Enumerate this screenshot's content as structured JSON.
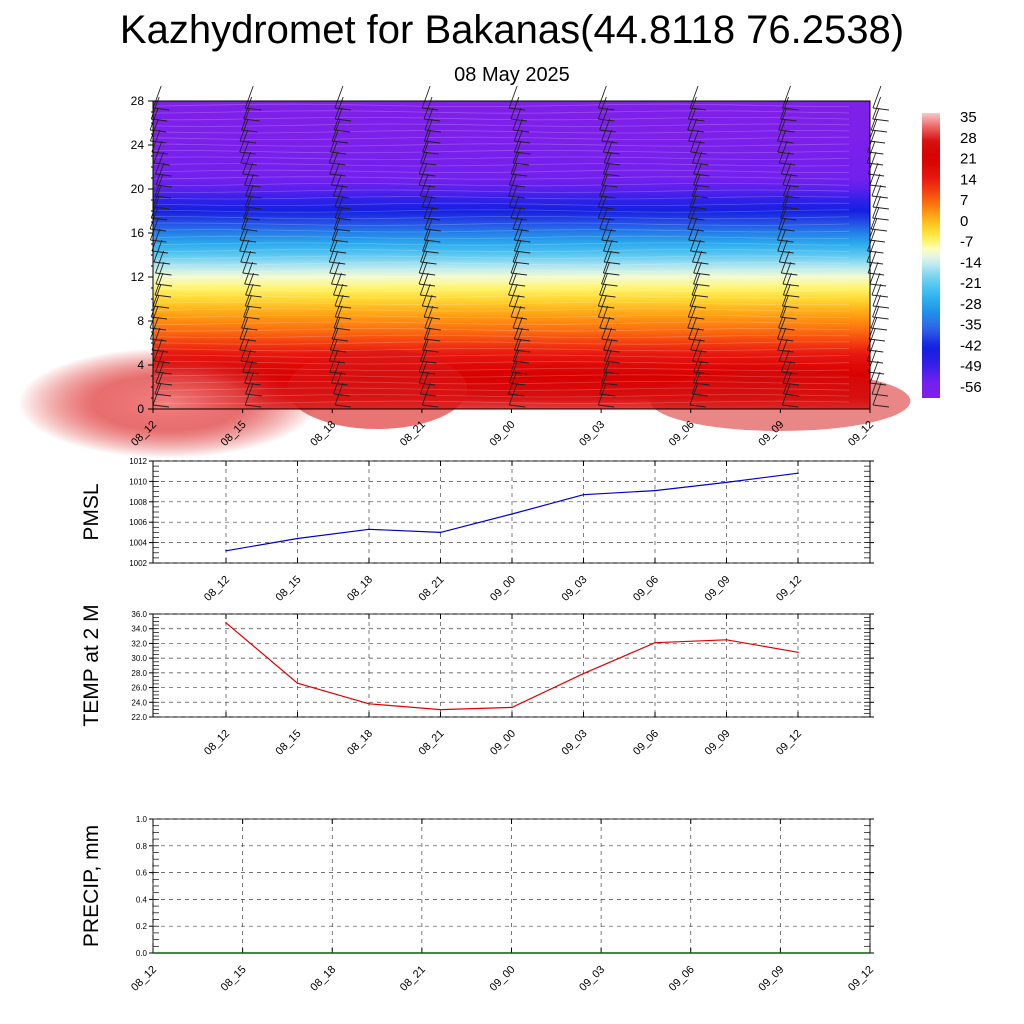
{
  "header": {
    "title": "Kazhydromet for Bakanas(44.8118 76.2538)",
    "date": "08 May 2025"
  },
  "chart_data": [
    {
      "type": "heatmap",
      "x_ticks": [
        "08_12",
        "08_15",
        "08_18",
        "08_21",
        "09_00",
        "09_03",
        "09_06",
        "09_09",
        "09_12"
      ],
      "y_ticks": [
        0,
        4,
        8,
        12,
        16,
        20,
        24,
        28
      ],
      "ylim": [
        0,
        28
      ],
      "colorbar_labels": [
        35,
        28,
        21,
        14,
        7,
        0,
        -7,
        -14,
        -21,
        -28,
        -35,
        -42,
        -49,
        -56
      ],
      "colorbar_range": [
        -62,
        38
      ],
      "colors": {
        "hot": "#d40000",
        "cold": "#8020e8",
        "warm_anomaly": "#f06060"
      },
      "temperature_profile": [
        {
          "h": 0,
          "t": 31
        },
        {
          "h": 1,
          "t": 28
        },
        {
          "h": 2,
          "t": 25
        },
        {
          "h": 3,
          "t": 22
        },
        {
          "h": 4,
          "t": 19
        },
        {
          "h": 5,
          "t": 15
        },
        {
          "h": 6,
          "t": 11
        },
        {
          "h": 7,
          "t": 7
        },
        {
          "h": 8,
          "t": 4
        },
        {
          "h": 9,
          "t": 1
        },
        {
          "h": 10,
          "t": -3
        },
        {
          "h": 11,
          "t": -7
        },
        {
          "h": 12,
          "t": -11
        },
        {
          "h": 13,
          "t": -16
        },
        {
          "h": 14,
          "t": -22
        },
        {
          "h": 15,
          "t": -28
        },
        {
          "h": 16,
          "t": -34
        },
        {
          "h": 17,
          "t": -40
        },
        {
          "h": 18,
          "t": -45
        },
        {
          "h": 19,
          "t": -50
        },
        {
          "h": 20,
          "t": -54
        },
        {
          "h": 21,
          "t": -57
        },
        {
          "h": 22,
          "t": -58
        },
        {
          "h": 23,
          "t": -59
        },
        {
          "h": 24,
          "t": -60
        },
        {
          "h": 26,
          "t": -61
        },
        {
          "h": 28,
          "t": -62
        }
      ]
    },
    {
      "type": "line",
      "ylabel": "PMSL",
      "categories": [
        "08_12",
        "08_15",
        "08_18",
        "08_21",
        "09_00",
        "09_03",
        "09_06",
        "09_09",
        "09_12"
      ],
      "values": [
        1003.2,
        1004.4,
        1005.3,
        1005.0,
        1006.8,
        1008.7,
        1009.1,
        1009.9,
        1010.8
      ],
      "ylim": [
        1002,
        1012
      ],
      "y_ticks": [
        1002,
        1004,
        1006,
        1008,
        1010,
        1012
      ],
      "color": "#0000cc"
    },
    {
      "type": "line",
      "ylabel": "TEMP at 2 M",
      "categories": [
        "08_12",
        "08_15",
        "08_18",
        "08_21",
        "09_00",
        "09_03",
        "09_06",
        "09_09",
        "09_12"
      ],
      "values": [
        34.8,
        26.6,
        23.8,
        23.0,
        23.3,
        27.9,
        32.1,
        32.5,
        30.8
      ],
      "ylim": [
        22,
        36
      ],
      "y_ticks": [
        "22.0",
        "24.0",
        "26.0",
        "28.0",
        "30.0",
        "32.0",
        "34.0",
        "36.0"
      ],
      "color": "#e00000"
    },
    {
      "type": "bar",
      "ylabel": "PRECIP, mm",
      "categories": [
        "08_12",
        "08_15",
        "08_18",
        "08_21",
        "09_00",
        "09_03",
        "09_06",
        "09_09",
        "09_12"
      ],
      "values": [
        0,
        0,
        0,
        0,
        0,
        0,
        0,
        0,
        0
      ],
      "ylim": [
        0,
        1
      ],
      "y_ticks": [
        "0.0",
        "0.2",
        "0.4",
        "0.6",
        "0.8",
        "1.0"
      ],
      "color": "#006400"
    }
  ]
}
